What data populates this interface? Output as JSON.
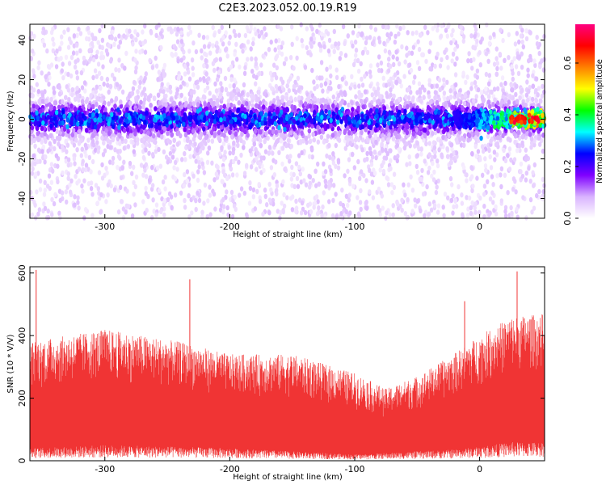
{
  "title": "C2E3.2023.052.00.19.R19",
  "chart_data": [
    {
      "type": "heatmap",
      "xlabel": "Height of straight line (km)",
      "ylabel": "Frequency (Hz)",
      "xlim": [
        -360,
        52
      ],
      "ylim": [
        -50,
        48
      ],
      "xticks": [
        -300,
        -200,
        -100,
        0
      ],
      "yticks": [
        -40,
        -20,
        0,
        20,
        40
      ],
      "colorbar": {
        "label": "Normalized spectral amplitude",
        "range": [
          0,
          0.75
        ],
        "ticks": [
          0.0,
          0.2,
          0.4,
          0.6
        ],
        "colors": [
          "#ffffff",
          "#d9b3ff",
          "#7f00ff",
          "#0000ff",
          "#00ffff",
          "#00ff00",
          "#ffff00",
          "#ff8000",
          "#ff0000",
          "#ff0080"
        ]
      },
      "description_of_data": {
        "band_center_hz": 0,
        "band_halfwidth_hz": 8,
        "strong_region_x": [
          10,
          52
        ],
        "peak_amplitude": 0.72
      }
    },
    {
      "type": "area",
      "xlabel": "Height of straight line (km)",
      "ylabel": "SNR (10 * V/V)",
      "xlim": [
        -360,
        52
      ],
      "ylim": [
        0,
        620
      ],
      "xticks": [
        -300,
        -200,
        -100,
        0
      ],
      "yticks": [
        0,
        200,
        400,
        600
      ],
      "color": "#f03434",
      "envelope": {
        "x": [
          -360,
          -300,
          -240,
          -200,
          -150,
          -100,
          -75,
          -50,
          -25,
          0,
          25,
          52
        ],
        "upper": [
          380,
          420,
          380,
          340,
          340,
          280,
          230,
          270,
          330,
          400,
          460,
          470
        ],
        "lower": [
          40,
          50,
          45,
          40,
          30,
          20,
          25,
          30,
          35,
          45,
          60,
          60
        ],
        "peaks": [
          [
            -355,
            610
          ],
          [
            -232,
            580
          ],
          [
            -12,
            510
          ],
          [
            30,
            605
          ]
        ]
      }
    }
  ]
}
